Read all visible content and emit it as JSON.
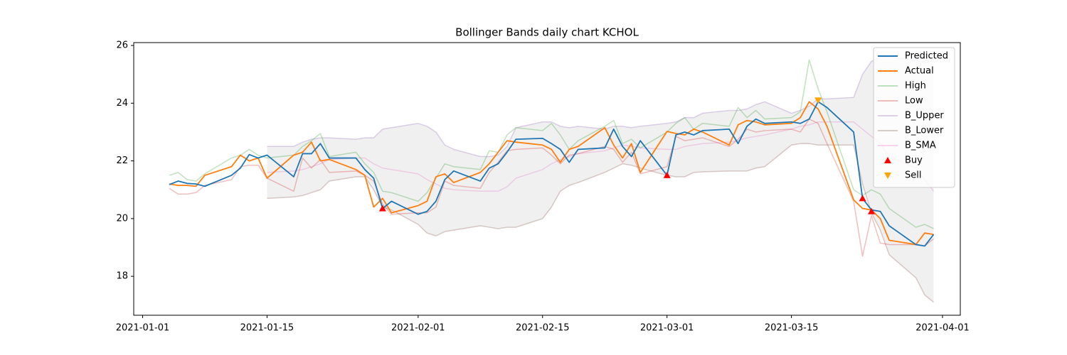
{
  "chart_data": {
    "type": "line",
    "title": "Bollinger Bands daily chart KCHOL",
    "x": [
      "2021-01-04",
      "2021-01-05",
      "2021-01-06",
      "2021-01-07",
      "2021-01-08",
      "2021-01-11",
      "2021-01-12",
      "2021-01-13",
      "2021-01-14",
      "2021-01-15",
      "2021-01-18",
      "2021-01-19",
      "2021-01-20",
      "2021-01-21",
      "2021-01-22",
      "2021-01-25",
      "2021-01-26",
      "2021-01-27",
      "2021-01-28",
      "2021-01-29",
      "2021-02-01",
      "2021-02-02",
      "2021-02-03",
      "2021-02-04",
      "2021-02-05",
      "2021-02-08",
      "2021-02-09",
      "2021-02-10",
      "2021-02-11",
      "2021-02-12",
      "2021-02-15",
      "2021-02-16",
      "2021-02-17",
      "2021-02-18",
      "2021-02-19",
      "2021-02-22",
      "2021-02-23",
      "2021-02-24",
      "2021-02-25",
      "2021-02-26",
      "2021-03-01",
      "2021-03-02",
      "2021-03-03",
      "2021-03-04",
      "2021-03-05",
      "2021-03-08",
      "2021-03-09",
      "2021-03-10",
      "2021-03-11",
      "2021-03-12",
      "2021-03-15",
      "2021-03-16",
      "2021-03-17",
      "2021-03-18",
      "2021-03-19",
      "2021-03-22",
      "2021-03-23",
      "2021-03-24",
      "2021-03-25",
      "2021-03-26",
      "2021-03-29",
      "2021-03-30",
      "2021-03-31"
    ],
    "series": [
      {
        "name": "Predicted",
        "color": "#1f77b4",
        "alpha": 1,
        "values": [
          21.18,
          21.3,
          21.22,
          21.2,
          21.12,
          21.5,
          21.75,
          22.22,
          22.1,
          22.2,
          21.45,
          22.25,
          22.25,
          22.6,
          22.1,
          22.1,
          21.7,
          21.4,
          20.35,
          20.6,
          20.15,
          20.25,
          20.6,
          21.35,
          21.65,
          21.3,
          21.75,
          21.9,
          22.3,
          22.75,
          22.78,
          22.6,
          22.4,
          21.95,
          22.4,
          22.45,
          23.1,
          22.5,
          22.15,
          22.7,
          21.5,
          22.9,
          23.0,
          22.9,
          23.05,
          23.1,
          22.6,
          23.2,
          23.45,
          23.3,
          23.35,
          23.3,
          23.45,
          24.05,
          23.85,
          23.0,
          20.7,
          20.3,
          20.25,
          19.75,
          19.1,
          19.05,
          19.45
        ]
      },
      {
        "name": "Actual",
        "color": "#ff7f0e",
        "alpha": 1,
        "values": [
          21.2,
          21.15,
          21.15,
          21.12,
          21.5,
          21.8,
          22.2,
          22.0,
          22.1,
          21.4,
          22.2,
          22.3,
          22.65,
          22.0,
          22.05,
          21.7,
          21.5,
          20.4,
          20.7,
          20.2,
          20.45,
          20.6,
          21.45,
          21.55,
          21.25,
          21.6,
          21.9,
          22.3,
          22.7,
          22.65,
          22.55,
          22.4,
          21.95,
          22.4,
          22.5,
          23.15,
          22.55,
          22.1,
          22.6,
          21.6,
          23.02,
          22.95,
          22.9,
          23.1,
          23.0,
          22.55,
          23.25,
          23.4,
          23.35,
          23.25,
          23.3,
          23.5,
          24.05,
          23.8,
          23.2,
          20.65,
          20.35,
          20.3,
          20.0,
          19.25,
          19.1,
          19.5,
          19.45
        ]
      },
      {
        "name": "High",
        "color": "#2ca02c",
        "alpha": 0.3,
        "values": [
          21.5,
          21.6,
          21.35,
          21.3,
          21.55,
          22.1,
          22.2,
          22.4,
          22.2,
          22.1,
          22.2,
          22.5,
          22.7,
          22.95,
          22.15,
          22.3,
          21.9,
          21.6,
          20.95,
          20.9,
          20.6,
          20.9,
          21.4,
          21.9,
          21.8,
          21.7,
          22.35,
          22.3,
          22.9,
          23.15,
          23.05,
          23.3,
          22.9,
          22.4,
          22.7,
          23.2,
          23.4,
          22.6,
          22.75,
          22.45,
          23.0,
          23.3,
          23.5,
          23.1,
          23.3,
          23.2,
          23.85,
          23.5,
          23.75,
          23.45,
          23.5,
          23.7,
          25.5,
          24.5,
          23.7,
          21.0,
          20.8,
          21.0,
          20.85,
          20.35,
          19.7,
          19.8,
          19.65
        ]
      },
      {
        "name": "Low",
        "color": "#d62728",
        "alpha": 0.3,
        "values": [
          21.05,
          20.85,
          20.85,
          20.9,
          21.15,
          21.35,
          21.8,
          21.85,
          21.85,
          21.4,
          20.95,
          22.1,
          21.75,
          22.05,
          21.6,
          21.65,
          21.5,
          21.3,
          20.5,
          20.15,
          20.2,
          20.2,
          20.4,
          21.3,
          21.15,
          21.05,
          21.6,
          21.95,
          22.35,
          22.4,
          22.45,
          22.2,
          21.9,
          22.2,
          22.25,
          22.5,
          22.4,
          21.95,
          22.3,
          21.55,
          21.8,
          22.85,
          22.7,
          22.75,
          22.8,
          22.5,
          22.75,
          23.1,
          23.0,
          23.05,
          23.1,
          23.0,
          23.45,
          23.3,
          22.6,
          20.6,
          18.7,
          20.1,
          19.15,
          19.1,
          19.1,
          19.05,
          19.3
        ]
      },
      {
        "name": "B_Upper",
        "color": "#9467bd",
        "alpha": 0.3,
        "fill_to_next": true,
        "fill_color": "#f0f0f0",
        "values": [
          null,
          null,
          null,
          null,
          null,
          null,
          null,
          null,
          null,
          22.5,
          22.5,
          22.65,
          22.75,
          22.8,
          22.8,
          22.75,
          22.8,
          22.8,
          23.1,
          23.15,
          23.3,
          23.2,
          23.0,
          22.55,
          22.4,
          22.15,
          22.15,
          22.2,
          22.5,
          23.15,
          23.35,
          23.35,
          23.2,
          23.15,
          23.2,
          23.1,
          23.2,
          23.2,
          23.15,
          23.2,
          23.3,
          23.35,
          23.5,
          23.5,
          23.65,
          23.75,
          23.75,
          23.8,
          23.95,
          24.05,
          23.65,
          23.75,
          23.9,
          24.15,
          24.15,
          24.2,
          25.0,
          25.45,
          25.6,
          25.6,
          25.5,
          25.4,
          25.5
        ]
      },
      {
        "name": "B_Lower",
        "color": "#8c564b",
        "alpha": 0.3,
        "values": [
          null,
          null,
          null,
          null,
          null,
          null,
          null,
          null,
          null,
          20.7,
          20.75,
          20.8,
          20.9,
          21.0,
          21.3,
          21.45,
          21.45,
          21.0,
          20.4,
          20.3,
          19.8,
          19.5,
          19.4,
          19.55,
          19.6,
          19.75,
          19.7,
          19.65,
          19.7,
          19.7,
          20.0,
          20.4,
          20.95,
          21.15,
          21.25,
          21.6,
          21.75,
          21.9,
          21.85,
          21.75,
          21.5,
          21.45,
          21.45,
          21.6,
          21.62,
          21.65,
          21.65,
          21.65,
          21.75,
          21.8,
          22.55,
          22.6,
          22.6,
          22.55,
          22.55,
          22.55,
          21.2,
          20.2,
          19.6,
          18.75,
          17.95,
          17.35,
          17.1
        ]
      },
      {
        "name": "B_SMA",
        "color": "#e377c2",
        "alpha": 0.3,
        "values": [
          null,
          null,
          null,
          null,
          null,
          null,
          null,
          null,
          null,
          21.6,
          21.65,
          21.7,
          21.8,
          21.9,
          22.05,
          22.1,
          22.1,
          21.9,
          21.75,
          21.7,
          21.55,
          21.35,
          21.2,
          21.05,
          21.0,
          20.95,
          20.95,
          20.95,
          21.1,
          21.4,
          21.7,
          21.9,
          22.05,
          22.15,
          22.25,
          22.35,
          22.45,
          22.55,
          22.5,
          22.45,
          22.4,
          22.4,
          22.5,
          22.55,
          22.6,
          22.65,
          22.7,
          22.8,
          22.85,
          22.9,
          23.1,
          23.2,
          23.25,
          23.35,
          23.35,
          23.35,
          23.1,
          22.85,
          22.6,
          22.15,
          21.75,
          21.35,
          20.95
        ]
      },
      {
        "name": "Buy",
        "type": "scatter",
        "marker": "up",
        "color": "#ff0000",
        "alpha": 1,
        "x": [
          "2021-01-28",
          "2021-03-01",
          "2021-03-23",
          "2021-03-24"
        ],
        "values": [
          20.35,
          21.5,
          20.7,
          20.25
        ]
      },
      {
        "name": "Sell",
        "type": "scatter",
        "marker": "down",
        "color": "#ffa500",
        "alpha": 1,
        "x": [
          "2021-03-18"
        ],
        "values": [
          24.1
        ]
      }
    ],
    "xlim": [
      "2020-12-31",
      "2021-04-03"
    ],
    "xticks": [
      "2021-01-01",
      "2021-01-15",
      "2021-02-01",
      "2021-02-15",
      "2021-03-01",
      "2021-03-15",
      "2021-04-01"
    ],
    "ylim": [
      16.65,
      26.1
    ],
    "yticks": [
      18,
      20,
      22,
      24,
      26
    ],
    "grid": false,
    "legend": "upper right"
  }
}
